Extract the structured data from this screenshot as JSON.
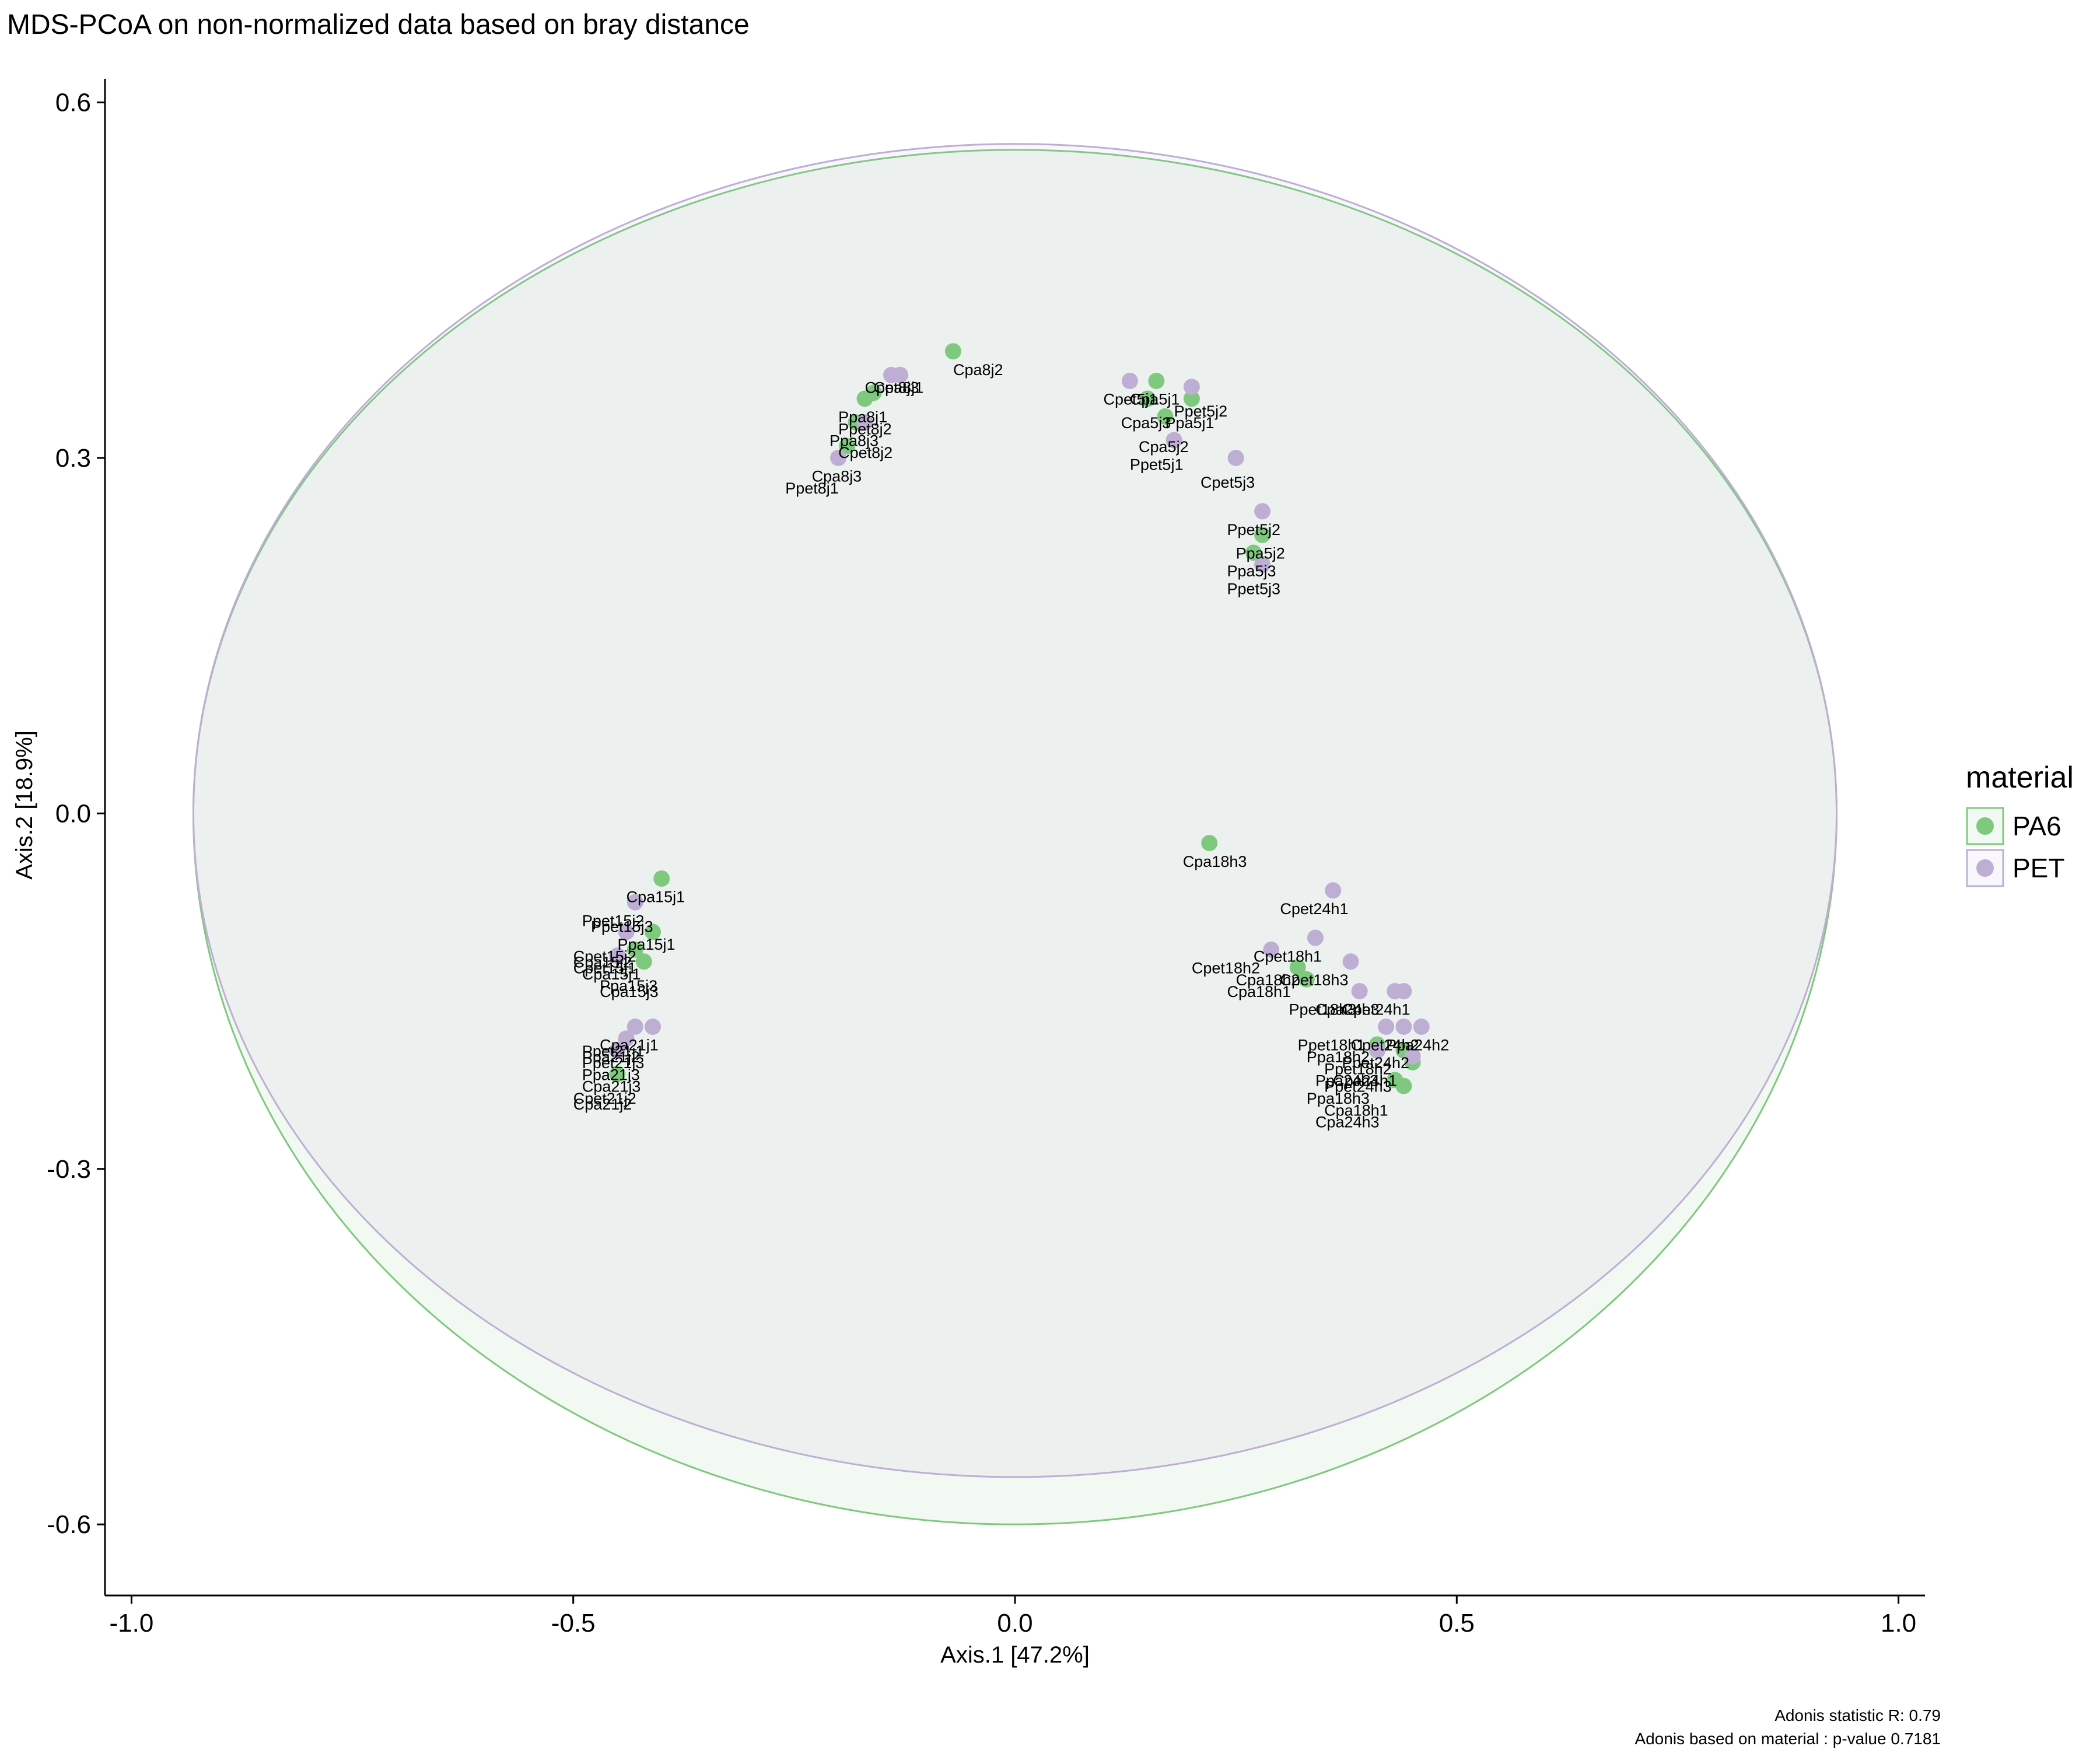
{
  "chart_data": {
    "type": "scatter",
    "title": "MDS-PCoA on non-normalized data based on bray distance",
    "xlabel": "Axis.1   [47.2%]",
    "ylabel": "Axis.2   [18.9%]",
    "xlim": [
      -1.03,
      1.03
    ],
    "ylim": [
      -0.66,
      0.62
    ],
    "xticks": [
      {
        "value": -1.0,
        "label": "-1.0"
      },
      {
        "value": -0.5,
        "label": "-0.5"
      },
      {
        "value": 0.0,
        "label": "0.0"
      },
      {
        "value": 0.5,
        "label": "0.5"
      },
      {
        "value": 1.0,
        "label": "1.0"
      }
    ],
    "yticks": [
      {
        "value": 0.6,
        "label": "0.6"
      },
      {
        "value": 0.3,
        "label": "0.3"
      },
      {
        "value": 0.0,
        "label": "0.0"
      },
      {
        "value": -0.3,
        "label": "-0.3"
      },
      {
        "value": -0.6,
        "label": "-0.6"
      }
    ],
    "grid": false,
    "legend": {
      "title": "material",
      "position": "right",
      "entries": [
        {
          "name": "PA6",
          "color": "#7fc97f"
        },
        {
          "name": "PET",
          "color": "#beaed4"
        }
      ]
    },
    "ellipses": [
      {
        "name": "PA6",
        "cx": 0.0,
        "cy": 0.0,
        "rx": 0.93,
        "ry_top": 0.56,
        "ry_bottom": 0.6,
        "stroke": "#7fc97f",
        "fill": "#7fc97f",
        "fill_opacity": 0.1
      },
      {
        "name": "PET",
        "cx": 0.0,
        "cy": 0.0,
        "rx": 0.93,
        "ry_top": 0.565,
        "ry_bottom": 0.56,
        "stroke": "#beaed4",
        "fill": "#beaed4",
        "fill_opacity": 0.1
      }
    ],
    "series": [
      {
        "name": "PA6",
        "color": "#7fc97f",
        "points": [
          {
            "x": -0.07,
            "y": 0.39
          },
          {
            "x": -0.16,
            "y": 0.355
          },
          {
            "x": -0.17,
            "y": 0.35
          },
          {
            "x": -0.18,
            "y": 0.33
          },
          {
            "x": -0.19,
            "y": 0.31
          },
          {
            "x": 0.16,
            "y": 0.365
          },
          {
            "x": 0.2,
            "y": 0.35
          },
          {
            "x": 0.15,
            "y": 0.35
          },
          {
            "x": 0.17,
            "y": 0.335
          },
          {
            "x": 0.28,
            "y": 0.235
          },
          {
            "x": 0.27,
            "y": 0.22
          },
          {
            "x": 0.22,
            "y": -0.025
          },
          {
            "x": -0.4,
            "y": -0.055
          },
          {
            "x": -0.41,
            "y": -0.1
          },
          {
            "x": -0.43,
            "y": -0.115
          },
          {
            "x": -0.42,
            "y": -0.125
          },
          {
            "x": -0.45,
            "y": -0.2
          },
          {
            "x": -0.45,
            "y": -0.22
          },
          {
            "x": 0.32,
            "y": -0.13
          },
          {
            "x": 0.33,
            "y": -0.14
          },
          {
            "x": 0.41,
            "y": -0.195
          },
          {
            "x": 0.44,
            "y": -0.2
          },
          {
            "x": 0.45,
            "y": -0.21
          },
          {
            "x": 0.43,
            "y": -0.225
          },
          {
            "x": 0.44,
            "y": -0.23
          }
        ]
      },
      {
        "name": "PET",
        "color": "#beaed4",
        "points": [
          {
            "x": -0.14,
            "y": 0.37
          },
          {
            "x": -0.13,
            "y": 0.37
          },
          {
            "x": -0.17,
            "y": 0.33
          },
          {
            "x": -0.2,
            "y": 0.3
          },
          {
            "x": 0.13,
            "y": 0.365
          },
          {
            "x": 0.2,
            "y": 0.36
          },
          {
            "x": 0.18,
            "y": 0.315
          },
          {
            "x": 0.25,
            "y": 0.3
          },
          {
            "x": 0.28,
            "y": 0.255
          },
          {
            "x": 0.28,
            "y": 0.21
          },
          {
            "x": -0.43,
            "y": -0.075
          },
          {
            "x": -0.44,
            "y": -0.1
          },
          {
            "x": -0.45,
            "y": -0.12
          },
          {
            "x": -0.41,
            "y": -0.18
          },
          {
            "x": -0.43,
            "y": -0.18
          },
          {
            "x": -0.44,
            "y": -0.19
          },
          {
            "x": -0.45,
            "y": -0.2
          },
          {
            "x": 0.36,
            "y": -0.065
          },
          {
            "x": 0.34,
            "y": -0.105
          },
          {
            "x": 0.29,
            "y": -0.115
          },
          {
            "x": 0.38,
            "y": -0.125
          },
          {
            "x": 0.39,
            "y": -0.15
          },
          {
            "x": 0.43,
            "y": -0.15
          },
          {
            "x": 0.44,
            "y": -0.15
          },
          {
            "x": 0.46,
            "y": -0.18
          },
          {
            "x": 0.44,
            "y": -0.18
          },
          {
            "x": 0.42,
            "y": -0.18
          },
          {
            "x": 0.41,
            "y": -0.2
          },
          {
            "x": 0.45,
            "y": -0.205
          }
        ]
      }
    ],
    "point_labels": [
      {
        "text": "Cpa8j2",
        "x": -0.07,
        "y": 0.37
      },
      {
        "text": "Cpet8j3",
        "x": -0.17,
        "y": 0.355
      },
      {
        "text": "Cpa8j1",
        "x": -0.16,
        "y": 0.355
      },
      {
        "text": "Ppa8j1",
        "x": -0.2,
        "y": 0.33
      },
      {
        "text": "Ppet8j2",
        "x": -0.2,
        "y": 0.32
      },
      {
        "text": "Ppa8j3",
        "x": -0.21,
        "y": 0.31
      },
      {
        "text": "Cpet8j2",
        "x": -0.2,
        "y": 0.3
      },
      {
        "text": "Cpa8j3",
        "x": -0.23,
        "y": 0.28
      },
      {
        "text": "Ppet8j1",
        "x": -0.26,
        "y": 0.27
      },
      {
        "text": "Cpet5j1",
        "x": 0.1,
        "y": 0.345
      },
      {
        "text": "Cpa5j1",
        "x": 0.13,
        "y": 0.345
      },
      {
        "text": "Ppet5j2",
        "x": 0.18,
        "y": 0.335
      },
      {
        "text": "Cpa5j3",
        "x": 0.12,
        "y": 0.325
      },
      {
        "text": "Ppa5j1",
        "x": 0.17,
        "y": 0.325
      },
      {
        "text": "Cpa5j2",
        "x": 0.14,
        "y": 0.305
      },
      {
        "text": "Ppet5j1",
        "x": 0.13,
        "y": 0.29
      },
      {
        "text": "Cpet5j3",
        "x": 0.21,
        "y": 0.275
      },
      {
        "text": "Ppet5j2",
        "x": 0.24,
        "y": 0.235
      },
      {
        "text": "Ppa5j2",
        "x": 0.25,
        "y": 0.215
      },
      {
        "text": "Ppa5j3",
        "x": 0.24,
        "y": 0.2
      },
      {
        "text": "Ppet5j3",
        "x": 0.24,
        "y": 0.185
      },
      {
        "text": "Cpa18h3",
        "x": 0.19,
        "y": -0.045
      },
      {
        "text": "Cpa15j1",
        "x": -0.44,
        "y": -0.075
      },
      {
        "text": "Ppet15j2",
        "x": -0.49,
        "y": -0.095
      },
      {
        "text": "Ppet15j3",
        "x": -0.48,
        "y": -0.1
      },
      {
        "text": "Ppa15j1",
        "x": -0.45,
        "y": -0.115
      },
      {
        "text": "Cpet15j2",
        "x": -0.5,
        "y": -0.125
      },
      {
        "text": "Cpa15j2",
        "x": -0.5,
        "y": -0.13
      },
      {
        "text": "Cpet15j1",
        "x": -0.5,
        "y": -0.135
      },
      {
        "text": "Cpa15j1",
        "x": -0.49,
        "y": -0.14
      },
      {
        "text": "Ppa15j3",
        "x": -0.47,
        "y": -0.15
      },
      {
        "text": "Cpa15j3",
        "x": -0.47,
        "y": -0.155
      },
      {
        "text": "Cpa21j1",
        "x": -0.47,
        "y": -0.2
      },
      {
        "text": "Ppet21j1",
        "x": -0.49,
        "y": -0.205
      },
      {
        "text": "Ppa21j2",
        "x": -0.49,
        "y": -0.21
      },
      {
        "text": "Ppet21j3",
        "x": -0.49,
        "y": -0.215
      },
      {
        "text": "Ppa21j3",
        "x": -0.49,
        "y": -0.225
      },
      {
        "text": "Cpa21j3",
        "x": -0.49,
        "y": -0.235
      },
      {
        "text": "Cpet21j2",
        "x": -0.5,
        "y": -0.245
      },
      {
        "text": "Cpa21j2",
        "x": -0.5,
        "y": -0.25
      },
      {
        "text": "Cpet24h1",
        "x": 0.3,
        "y": -0.085
      },
      {
        "text": "Cpet18h1",
        "x": 0.27,
        "y": -0.125
      },
      {
        "text": "Cpet18h2",
        "x": 0.2,
        "y": -0.135
      },
      {
        "text": "Cpet18h3",
        "x": 0.3,
        "y": -0.145
      },
      {
        "text": "Cpa18h2",
        "x": 0.25,
        "y": -0.145
      },
      {
        "text": "Cpa18h1",
        "x": 0.24,
        "y": -0.155
      },
      {
        "text": "Ppet18h3",
        "x": 0.31,
        "y": -0.17
      },
      {
        "text": "Cpa24h3",
        "x": 0.34,
        "y": -0.17
      },
      {
        "text": "Cpet24h1",
        "x": 0.37,
        "y": -0.17
      },
      {
        "text": "Ppet18h1",
        "x": 0.32,
        "y": -0.2
      },
      {
        "text": "Cpet24h2",
        "x": 0.38,
        "y": -0.2
      },
      {
        "text": "Ppa24h2",
        "x": 0.42,
        "y": -0.2
      },
      {
        "text": "Ppa18h2",
        "x": 0.33,
        "y": -0.21
      },
      {
        "text": "Ppet24h2",
        "x": 0.37,
        "y": -0.215
      },
      {
        "text": "Ppet18h2",
        "x": 0.35,
        "y": -0.22
      },
      {
        "text": "Ppa24h3",
        "x": 0.34,
        "y": -0.23
      },
      {
        "text": "Cpa24h1",
        "x": 0.36,
        "y": -0.23
      },
      {
        "text": "Ppet24h3",
        "x": 0.35,
        "y": -0.235
      },
      {
        "text": "Ppa18h3",
        "x": 0.33,
        "y": -0.245
      },
      {
        "text": "Cpa18h1",
        "x": 0.35,
        "y": -0.255
      },
      {
        "text": "Cpa24h3",
        "x": 0.34,
        "y": -0.265
      }
    ],
    "footnotes": [
      "Adonis statistic R: 0.79",
      "Adonis based on  material : p-value 0.7181"
    ]
  }
}
